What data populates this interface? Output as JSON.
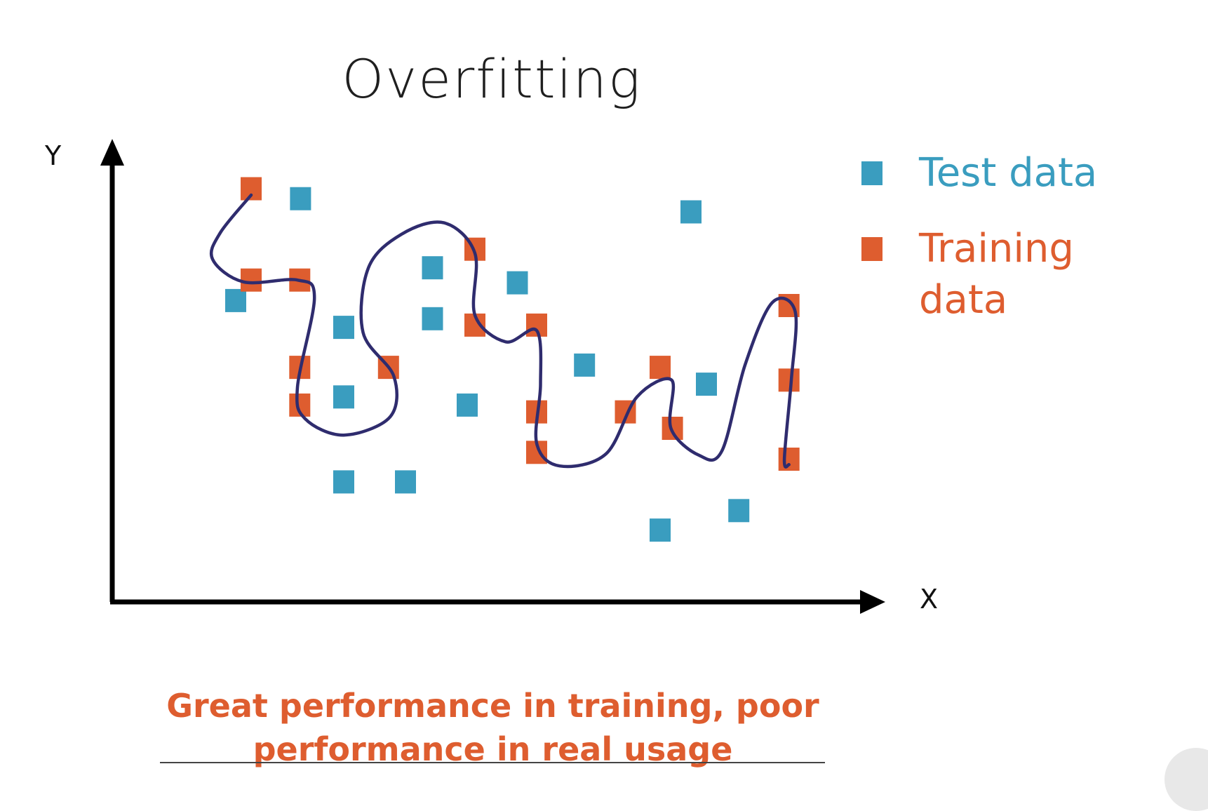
{
  "title": "Overfitting",
  "axes": {
    "x_label": "X",
    "y_label": "Y"
  },
  "legend": [
    {
      "label": "Test data",
      "color": "#3a9dbf"
    },
    {
      "label": "Training\ndata",
      "color": "#de5d2f"
    }
  ],
  "caption": "Great performance in training, poor performance in real usage",
  "colors": {
    "test": "#3a9dbf",
    "training": "#de5d2f",
    "curve": "#2f2c6e",
    "axis": "#000000"
  },
  "chart_data": {
    "type": "scatter",
    "title": "Overfitting",
    "xlabel": "X",
    "ylabel": "Y",
    "xlim": [
      0,
      100
    ],
    "ylim": [
      0,
      100
    ],
    "series": [
      {
        "name": "Test data",
        "points": [
          [
            16,
            66.3
          ],
          [
            24.4,
            88.7
          ],
          [
            30,
            60.4
          ],
          [
            30,
            45.1
          ],
          [
            30,
            26.4
          ],
          [
            38,
            26.4
          ],
          [
            41.5,
            73.5
          ],
          [
            41.5,
            62.3
          ],
          [
            46,
            43.3
          ],
          [
            52.5,
            70.2
          ],
          [
            61.2,
            52.1
          ],
          [
            71,
            15.8
          ],
          [
            75,
            85.8
          ],
          [
            77,
            47.9
          ],
          [
            81.2,
            20.1
          ]
        ]
      },
      {
        "name": "Training data",
        "points": [
          [
            18,
            90.9
          ],
          [
            18,
            70.8
          ],
          [
            24.3,
            70.8
          ],
          [
            24.3,
            51.6
          ],
          [
            24.3,
            43.3
          ],
          [
            35.8,
            51.6
          ],
          [
            47,
            77.6
          ],
          [
            47,
            60.9
          ],
          [
            55,
            60.9
          ],
          [
            55,
            41.8
          ],
          [
            55,
            32.9
          ],
          [
            66.5,
            41.8
          ],
          [
            71,
            51.6
          ],
          [
            72.6,
            38.2
          ],
          [
            87.7,
            65.2
          ],
          [
            87.7,
            48.8
          ],
          [
            87.7,
            31.4
          ]
        ]
      }
    ],
    "fitted_curve": {
      "name": "",
      "points": [
        [
          18,
          89.5
        ],
        [
          14,
          81.2
        ],
        [
          13,
          75.4
        ],
        [
          17,
          70.4
        ],
        [
          24,
          70.8
        ],
        [
          26.2,
          66.9
        ],
        [
          24,
          47.2
        ],
        [
          25,
          40.3
        ],
        [
          30,
          36.7
        ],
        [
          36,
          40.7
        ],
        [
          36.5,
          49.6
        ],
        [
          32.5,
          59.3
        ],
        [
          33.2,
          73.5
        ],
        [
          37.5,
          80.9
        ],
        [
          43,
          83.4
        ],
        [
          47,
          76.7
        ],
        [
          47,
          63.1
        ],
        [
          51,
          57.2
        ],
        [
          55,
          59.7
        ],
        [
          55.5,
          47.9
        ],
        [
          55,
          34.9
        ],
        [
          58,
          29.9
        ],
        [
          64,
          32.6
        ],
        [
          68,
          45.1
        ],
        [
          72.5,
          48.8
        ],
        [
          72.4,
          38.2
        ],
        [
          76,
          32.3
        ],
        [
          79,
          33.2
        ],
        [
          82,
          52.1
        ],
        [
          85.5,
          65.8
        ],
        [
          88.5,
          63.9
        ],
        [
          88,
          48.8
        ],
        [
          87.1,
          31.4
        ],
        [
          87.7,
          30.2
        ]
      ]
    },
    "grid": false,
    "legend_position": "right"
  }
}
